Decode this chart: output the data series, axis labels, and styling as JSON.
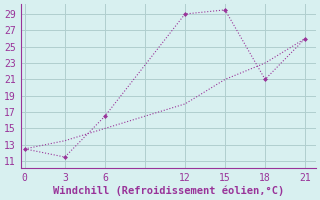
{
  "line1_x": [
    0,
    3,
    6,
    12,
    15,
    18,
    21
  ],
  "line1_y": [
    12.5,
    11.5,
    16.5,
    29,
    29.5,
    21,
    26
  ],
  "line2_x": [
    0,
    3,
    6,
    9,
    12,
    15,
    18,
    21
  ],
  "line2_y": [
    12.5,
    13.5,
    15.0,
    16.5,
    18.0,
    21.0,
    23.0,
    26.0
  ],
  "color": "#993399",
  "bg_color": "#d8f0f0",
  "grid_color": "#b0cece",
  "xlabel": "Windchill (Refroidissement éolien,°C)",
  "xtick_labels": [
    "0",
    "3",
    "6",
    "",
    "12",
    "15",
    "18",
    "21"
  ],
  "xtick_vals": [
    0,
    3,
    6,
    9,
    12,
    15,
    18,
    21
  ],
  "ytick_vals": [
    11,
    13,
    15,
    17,
    19,
    21,
    23,
    25,
    27,
    29
  ],
  "xlim": [
    -0.3,
    21.8
  ],
  "ylim": [
    10.2,
    30.2
  ],
  "xlabel_fontsize": 7.5,
  "tick_fontsize": 7
}
